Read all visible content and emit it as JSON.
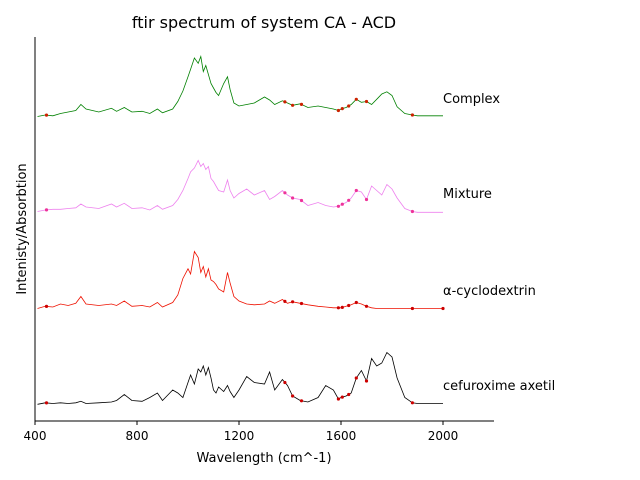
{
  "chart_data": {
    "type": "line",
    "title": "ftir spectrum of system CA - ACD",
    "xlabel": "Wavelength (cm^-1)",
    "ylabel": "Intenisty/Absorbtion",
    "xlim": [
      400,
      2200
    ],
    "xticks": [
      400,
      800,
      1200,
      1600,
      2000
    ],
    "grid": false,
    "label_placement": "right of each trace",
    "series": [
      {
        "name": "Complex",
        "color": "#008000",
        "marker_color": "#cc2200",
        "x": [
          410,
          440,
          470,
          500,
          530,
          560,
          580,
          600,
          650,
          700,
          720,
          750,
          780,
          820,
          850,
          880,
          900,
          940,
          960,
          980,
          1000,
          1010,
          1025,
          1040,
          1050,
          1060,
          1070,
          1080,
          1090,
          1100,
          1110,
          1120,
          1140,
          1155,
          1165,
          1180,
          1200,
          1230,
          1260,
          1300,
          1320,
          1340,
          1370,
          1390,
          1410,
          1440,
          1470,
          1510,
          1540,
          1570,
          1590,
          1600,
          1620,
          1640,
          1660,
          1680,
          1700,
          1720,
          1740,
          1760,
          1780,
          1800,
          1820,
          1850,
          1880,
          1900,
          1950,
          2000
        ],
        "y": [
          0.02,
          0.04,
          0.03,
          0.06,
          0.08,
          0.1,
          0.18,
          0.12,
          0.08,
          0.13,
          0.09,
          0.14,
          0.08,
          0.09,
          0.06,
          0.12,
          0.07,
          0.12,
          0.22,
          0.36,
          0.55,
          0.65,
          0.8,
          0.73,
          0.82,
          0.62,
          0.7,
          0.58,
          0.46,
          0.4,
          0.34,
          0.3,
          0.46,
          0.55,
          0.38,
          0.2,
          0.16,
          0.18,
          0.2,
          0.28,
          0.24,
          0.18,
          0.23,
          0.2,
          0.17,
          0.19,
          0.14,
          0.16,
          0.14,
          0.12,
          0.1,
          0.12,
          0.14,
          0.18,
          0.25,
          0.21,
          0.22,
          0.18,
          0.25,
          0.32,
          0.35,
          0.3,
          0.15,
          0.06,
          0.04,
          0.03,
          0.03,
          0.03
        ],
        "markers_x": [
          445,
          1380,
          1410,
          1445,
          1590,
          1605,
          1630,
          1660,
          1700,
          1880
        ]
      },
      {
        "name": "Mixture",
        "color": "#ee82ee",
        "marker_color": "#ee3399",
        "x": [
          410,
          440,
          470,
          500,
          530,
          560,
          580,
          600,
          650,
          700,
          720,
          750,
          780,
          820,
          850,
          880,
          900,
          940,
          960,
          980,
          1000,
          1010,
          1025,
          1040,
          1050,
          1060,
          1070,
          1080,
          1090,
          1100,
          1110,
          1120,
          1140,
          1155,
          1165,
          1180,
          1200,
          1230,
          1260,
          1300,
          1320,
          1340,
          1370,
          1390,
          1410,
          1440,
          1470,
          1510,
          1540,
          1570,
          1590,
          1600,
          1620,
          1640,
          1660,
          1680,
          1700,
          1720,
          1740,
          1760,
          1780,
          1800,
          1820,
          1850,
          1880,
          1900,
          1950,
          2000
        ],
        "y": [
          0.02,
          0.04,
          0.05,
          0.05,
          0.06,
          0.07,
          0.12,
          0.08,
          0.06,
          0.12,
          0.08,
          0.13,
          0.06,
          0.07,
          0.04,
          0.1,
          0.05,
          0.1,
          0.18,
          0.3,
          0.46,
          0.55,
          0.6,
          0.7,
          0.62,
          0.66,
          0.58,
          0.62,
          0.46,
          0.42,
          0.36,
          0.3,
          0.28,
          0.44,
          0.3,
          0.2,
          0.26,
          0.32,
          0.24,
          0.3,
          0.18,
          0.22,
          0.3,
          0.24,
          0.2,
          0.18,
          0.1,
          0.14,
          0.1,
          0.08,
          0.09,
          0.11,
          0.14,
          0.2,
          0.3,
          0.28,
          0.18,
          0.36,
          0.3,
          0.24,
          0.38,
          0.32,
          0.2,
          0.06,
          0.02,
          0.01,
          0.01,
          0.01
        ],
        "markers_x": [
          445,
          1380,
          1410,
          1445,
          1590,
          1605,
          1630,
          1660,
          1700,
          1880
        ]
      },
      {
        "name": "α-cyclodextrin",
        "color": "#ee1100",
        "marker_color": "#cc0000",
        "x": [
          410,
          440,
          470,
          500,
          530,
          560,
          580,
          600,
          650,
          700,
          720,
          750,
          780,
          820,
          850,
          880,
          900,
          940,
          960,
          980,
          1000,
          1010,
          1025,
          1040,
          1050,
          1060,
          1070,
          1080,
          1090,
          1100,
          1110,
          1120,
          1140,
          1155,
          1165,
          1180,
          1200,
          1230,
          1260,
          1300,
          1320,
          1340,
          1370,
          1390,
          1410,
          1440,
          1470,
          1510,
          1540,
          1570,
          1590,
          1600,
          1620,
          1640,
          1660,
          1680,
          1700,
          1720,
          1740,
          1760,
          1780,
          1800,
          1820,
          1850,
          1880,
          1900,
          1950,
          2000
        ],
        "y": [
          0.02,
          0.05,
          0.04,
          0.08,
          0.06,
          0.09,
          0.18,
          0.08,
          0.06,
          0.08,
          0.06,
          0.12,
          0.05,
          0.06,
          0.04,
          0.1,
          0.04,
          0.1,
          0.2,
          0.42,
          0.55,
          0.48,
          0.78,
          0.7,
          0.5,
          0.58,
          0.44,
          0.55,
          0.4,
          0.38,
          0.34,
          0.28,
          0.24,
          0.5,
          0.36,
          0.18,
          0.12,
          0.08,
          0.07,
          0.08,
          0.12,
          0.09,
          0.14,
          0.09,
          0.11,
          0.09,
          0.07,
          0.05,
          0.04,
          0.03,
          0.03,
          0.03,
          0.05,
          0.07,
          0.1,
          0.08,
          0.05,
          0.03,
          0.02,
          0.02,
          0.02,
          0.02,
          0.02,
          0.02,
          0.02,
          0.02,
          0.02,
          0.02
        ],
        "markers_x": [
          445,
          1380,
          1410,
          1445,
          1590,
          1605,
          1630,
          1660,
          1700,
          1880,
          2000
        ]
      },
      {
        "name": "cefuroxime axetil",
        "color": "#000000",
        "marker_color": "#cc0000",
        "x": [
          410,
          440,
          470,
          500,
          530,
          560,
          580,
          600,
          650,
          700,
          720,
          750,
          780,
          820,
          850,
          880,
          900,
          940,
          960,
          980,
          1000,
          1010,
          1025,
          1040,
          1050,
          1060,
          1070,
          1080,
          1090,
          1100,
          1110,
          1120,
          1140,
          1155,
          1165,
          1180,
          1200,
          1230,
          1260,
          1300,
          1320,
          1340,
          1370,
          1390,
          1410,
          1440,
          1470,
          1510,
          1540,
          1570,
          1590,
          1600,
          1620,
          1640,
          1660,
          1680,
          1700,
          1720,
          1740,
          1760,
          1780,
          1800,
          1820,
          1850,
          1880,
          1900,
          1950,
          2000
        ],
        "y": [
          0.01,
          0.03,
          0.02,
          0.03,
          0.02,
          0.03,
          0.05,
          0.02,
          0.03,
          0.04,
          0.06,
          0.14,
          0.06,
          0.05,
          0.1,
          0.16,
          0.06,
          0.2,
          0.16,
          0.1,
          0.3,
          0.4,
          0.28,
          0.48,
          0.44,
          0.52,
          0.4,
          0.5,
          0.36,
          0.2,
          0.16,
          0.24,
          0.18,
          0.26,
          0.18,
          0.1,
          0.2,
          0.38,
          0.3,
          0.28,
          0.44,
          0.2,
          0.34,
          0.26,
          0.12,
          0.06,
          0.04,
          0.1,
          0.26,
          0.2,
          0.08,
          0.1,
          0.12,
          0.16,
          0.36,
          0.46,
          0.32,
          0.62,
          0.52,
          0.56,
          0.7,
          0.64,
          0.36,
          0.1,
          0.03,
          0.02,
          0.02,
          0.02
        ],
        "markers_x": [
          445,
          1380,
          1410,
          1445,
          1590,
          1605,
          1630,
          1660,
          1700,
          1880
        ]
      }
    ]
  }
}
